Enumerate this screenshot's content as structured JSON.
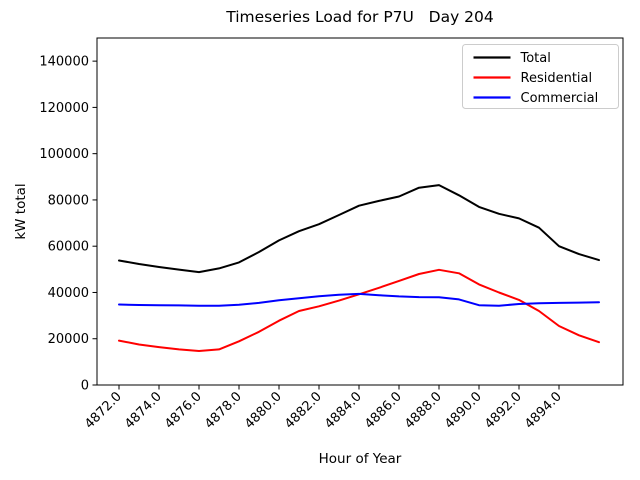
{
  "chart_data": {
    "type": "line",
    "title": "Timeseries Load for P7U   Day 204",
    "xlabel": "Hour of Year",
    "ylabel": "kW total",
    "xlim": [
      4870.9,
      4897.2
    ],
    "ylim": [
      0,
      150000
    ],
    "grid": false,
    "legend_position": "upper right",
    "xticks": [
      4872,
      4874,
      4876,
      4878,
      4880,
      4882,
      4884,
      4886,
      4888,
      4890,
      4892,
      4894
    ],
    "xtick_labels": [
      "4872.0",
      "4874.0",
      "4876.0",
      "4878.0",
      "4880.0",
      "4882.0",
      "4884.0",
      "4886.0",
      "4888.0",
      "4890.0",
      "4892.0",
      "4894.0"
    ],
    "yticks": [
      0,
      20000,
      40000,
      60000,
      80000,
      100000,
      120000,
      140000
    ],
    "ytick_labels": [
      "0",
      "20000",
      "40000",
      "60000",
      "80000",
      "100000",
      "120000",
      "140000"
    ],
    "x": [
      4872,
      4873,
      4874,
      4875,
      4876,
      4877,
      4878,
      4879,
      4880,
      4881,
      4882,
      4883,
      4884,
      4885,
      4886,
      4887,
      4888,
      4889,
      4890,
      4891,
      4892,
      4893,
      4894,
      4895,
      4896
    ],
    "series": [
      {
        "name": "Total",
        "color": "#000000",
        "values": [
          53800,
          52300,
          51000,
          49900,
          48800,
          50400,
          53000,
          57500,
          62500,
          66500,
          69500,
          73500,
          77500,
          79600,
          81500,
          85300,
          86400,
          82000,
          77000,
          74000,
          72000,
          68000,
          60000,
          56600,
          54000
        ]
      },
      {
        "name": "Residential",
        "color": "#ff0000",
        "values": [
          19200,
          17500,
          16400,
          15400,
          14700,
          15400,
          18900,
          23000,
          27800,
          32000,
          34000,
          36500,
          39200,
          42000,
          45000,
          48000,
          49800,
          48300,
          43500,
          40000,
          36800,
          32000,
          25500,
          21500,
          18500
        ]
      },
      {
        "name": "Commercial",
        "color": "#0000ff",
        "values": [
          34800,
          34600,
          34500,
          34400,
          34300,
          34300,
          34700,
          35500,
          36600,
          37500,
          38400,
          39000,
          39400,
          38800,
          38300,
          38000,
          37900,
          37000,
          34500,
          34300,
          35000,
          35300,
          35500,
          35600,
          35800
        ]
      }
    ]
  }
}
